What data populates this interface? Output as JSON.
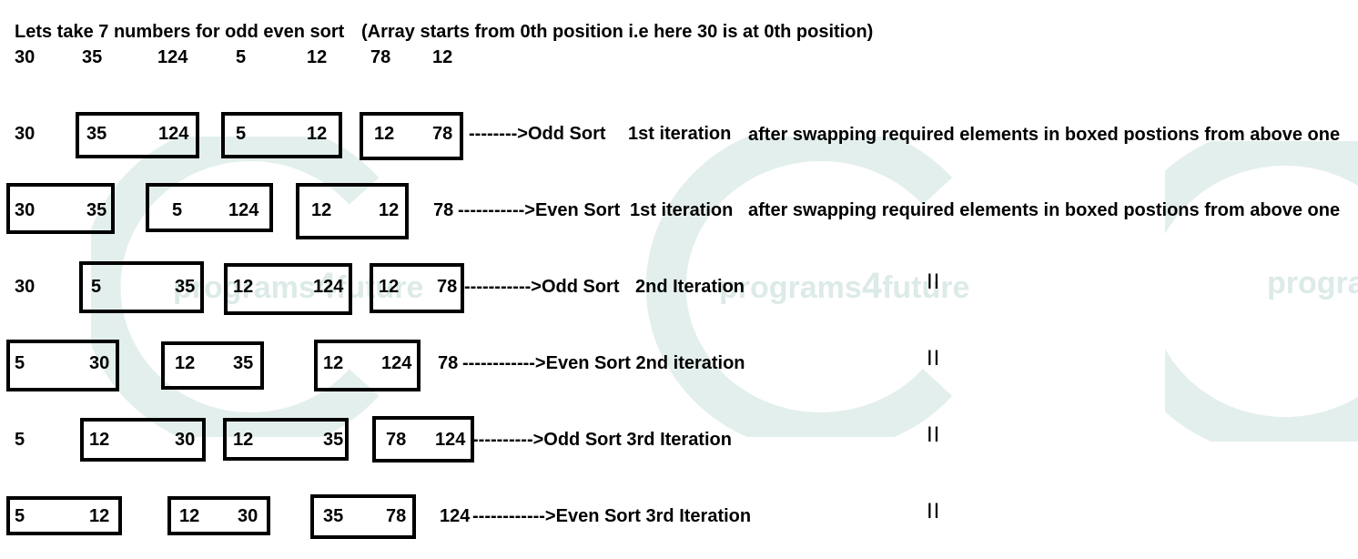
{
  "header": {
    "line1": "Lets take 7 numbers for odd even sort",
    "note": "(Array starts from 0th position i.e here 30 is at 0th position)",
    "initial": [
      "30",
      "35",
      "124",
      "5",
      "12",
      "78",
      "12"
    ]
  },
  "rows": [
    {
      "leading": "30",
      "pairs": [
        [
          "35",
          "124"
        ],
        [
          "5",
          "12"
        ],
        [
          "12",
          "78"
        ]
      ],
      "trailing": "",
      "label": "-------->Odd Sort",
      "iteration": "1st iteration",
      "comment": "after swapping required elements in boxed postions from above one",
      "mark": ""
    },
    {
      "leading": "",
      "pairs": [
        [
          "30",
          "35"
        ],
        [
          "5",
          "124"
        ],
        [
          "12",
          "12"
        ]
      ],
      "trailing": "78",
      "label": "----------->Even Sort",
      "iteration": "1st iteration",
      "comment": "after swapping required elements in boxed postions from above one",
      "mark": ""
    },
    {
      "leading": "30",
      "pairs": [
        [
          "5",
          "35"
        ],
        [
          "12",
          "124"
        ],
        [
          "12",
          "78"
        ]
      ],
      "trailing": "",
      "label": "----------->Odd Sort",
      "iteration": "2nd Iteration",
      "comment": "",
      "mark": "II"
    },
    {
      "leading": "",
      "pairs": [
        [
          "5",
          "30"
        ],
        [
          "12",
          "35"
        ],
        [
          "12",
          "124"
        ]
      ],
      "trailing": "78",
      "label": "------------>Even Sort 2nd iteration",
      "iteration": "",
      "comment": "",
      "mark": "II"
    },
    {
      "leading": "5",
      "pairs": [
        [
          "12",
          "30"
        ],
        [
          "12",
          "35"
        ],
        [
          "78",
          "124"
        ]
      ],
      "trailing": "",
      "label": "---------->Odd Sort 3rd Iteration",
      "iteration": "",
      "comment": "",
      "mark": "II"
    },
    {
      "leading": "",
      "pairs": [
        [
          "5",
          "12"
        ],
        [
          "12",
          "30"
        ],
        [
          "35",
          "78"
        ]
      ],
      "trailing": "124",
      "label": "------------>Even Sort 3rd Iteration",
      "iteration": "",
      "comment": "",
      "mark": "II"
    }
  ],
  "watermark": {
    "text": [
      "programs",
      "4",
      "future"
    ],
    "partial_text": "prograi",
    "color": "#d9e9e6"
  }
}
